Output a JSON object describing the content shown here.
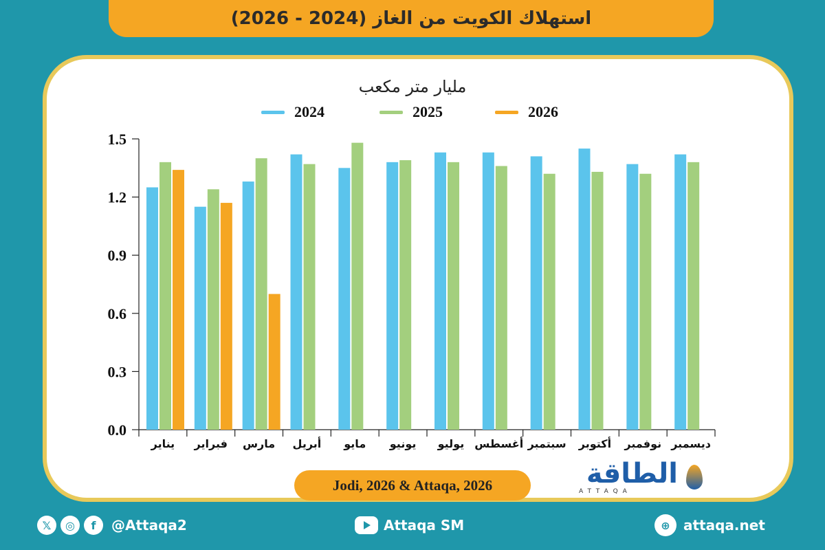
{
  "title": "استهلاك الكويت من الغاز (2024 - 2026)",
  "unit_label": "مليار متر مكعب",
  "source": "Jodi, 2026 & Attaqa, 2026",
  "logo": {
    "name": "الطاقة",
    "sub": "ATTAQA"
  },
  "footer": {
    "social_handle": "@Attaqa2",
    "youtube": "Attaqa SM",
    "website": "attaqa.net"
  },
  "colors": {
    "2024": "#5bc4ec",
    "2025": "#a3cf7e",
    "2026": "#f5a623",
    "banner": "#f5a623",
    "background": "#1f97aa"
  },
  "chart_data": {
    "type": "bar",
    "title": "",
    "ylabel": "مليار متر مكعب",
    "ylim": [
      0,
      1.5
    ],
    "yticks": [
      "0.0",
      "0.3",
      "0.6",
      "0.9",
      "1.2",
      "1.5"
    ],
    "categories": [
      "يناير",
      "فبراير",
      "مارس",
      "أبريل",
      "مايو",
      "يونيو",
      "يوليو",
      "أغسطس",
      "سبتمبر",
      "أكتوبر",
      "نوفمبر",
      "ديسمبر"
    ],
    "series": [
      {
        "name": "2024",
        "values": [
          1.25,
          1.15,
          1.28,
          1.42,
          1.35,
          1.38,
          1.43,
          1.43,
          1.41,
          1.45,
          1.37,
          1.42
        ]
      },
      {
        "name": "2025",
        "values": [
          1.38,
          1.24,
          1.4,
          1.37,
          1.48,
          1.39,
          1.38,
          1.36,
          1.32,
          1.33,
          1.32,
          1.38
        ]
      },
      {
        "name": "2026",
        "values": [
          1.34,
          1.17,
          0.7,
          null,
          null,
          null,
          null,
          null,
          null,
          null,
          null,
          null
        ]
      }
    ],
    "legend_position": "top"
  }
}
